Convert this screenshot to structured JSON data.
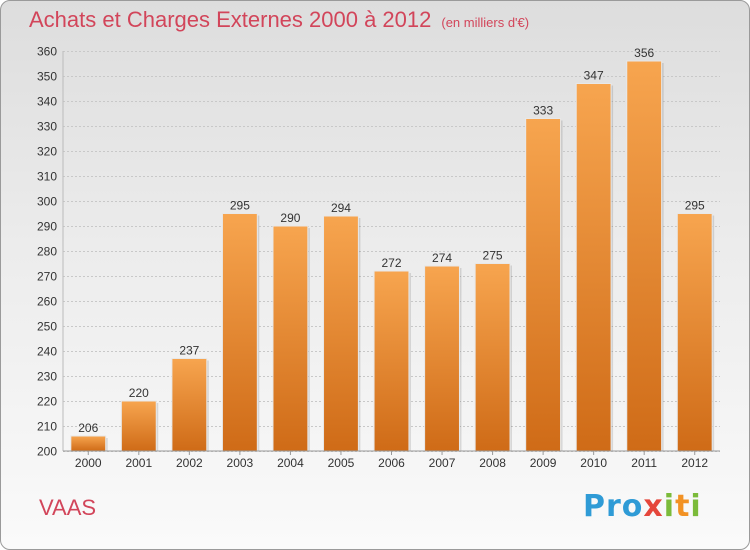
{
  "title": "Achats et Charges Externes 2000 à 2012",
  "unit": "(en milliers d'€)",
  "place": "VAAS",
  "logo": [
    "Pro",
    "x",
    "i",
    "t",
    "i"
  ],
  "colors": {
    "bar_top": "#f7a54f",
    "bar_bottom": "#cf6b17",
    "accent": "#d2455a"
  },
  "chart_data": {
    "type": "bar",
    "categories": [
      "2000",
      "2001",
      "2002",
      "2003",
      "2004",
      "2005",
      "2006",
      "2007",
      "2008",
      "2009",
      "2010",
      "2011",
      "2012"
    ],
    "values": [
      206,
      220,
      237,
      295,
      290,
      294,
      272,
      274,
      275,
      333,
      347,
      356,
      295
    ],
    "title": "Achats et Charges Externes 2000 à 2012",
    "xlabel": "",
    "ylabel": "",
    "ylim": [
      200,
      360
    ],
    "yticks": [
      200,
      210,
      220,
      230,
      240,
      250,
      260,
      270,
      280,
      290,
      300,
      310,
      320,
      330,
      340,
      350,
      360
    ],
    "grid": true
  }
}
